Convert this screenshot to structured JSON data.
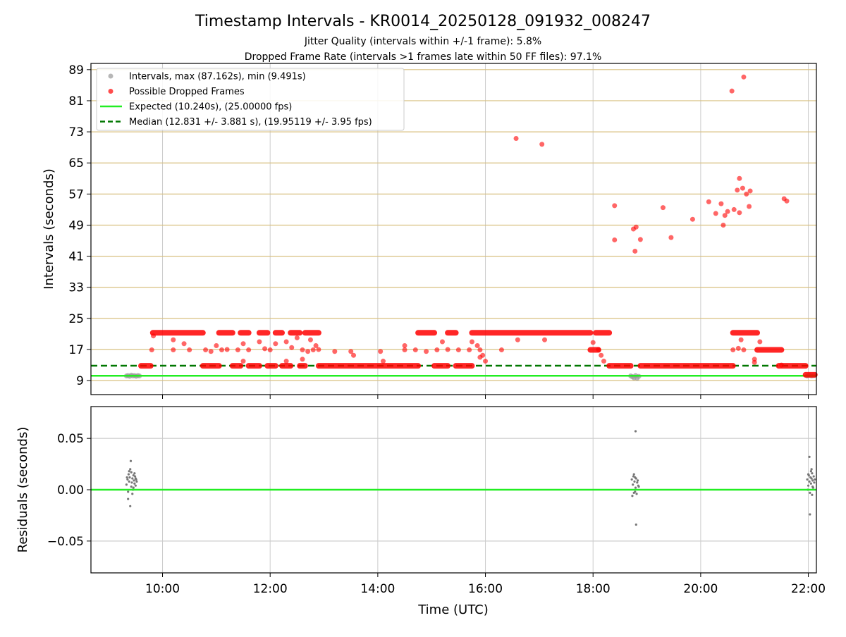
{
  "figure": {
    "title": "Timestamp Intervals - KR0014_20250128_091932_008247",
    "subtitle_1": "Jitter Quality (intervals within +/-1 frame): 5.8%",
    "subtitle_2": "Dropped Frame Rate (intervals >1 frames late within 50 FF files): 97.1%"
  },
  "colors": {
    "intervals": "#999999",
    "dropped": "#ff0000",
    "expected": "#22ee22",
    "median": "#007700",
    "yellow_grid": "#d8c080",
    "grey_grid": "#cccccc",
    "residuals": "#777777"
  },
  "chart_data": [
    {
      "type": "scatter",
      "panel": "top",
      "ylabel": "Intervals (seconds)",
      "xlim": [
        8.67,
        22.15
      ],
      "ylim": [
        5.4,
        90.6
      ],
      "x_ticks": [
        10,
        12,
        14,
        16,
        18,
        20,
        22
      ],
      "x_tick_labels": [
        "10:00",
        "12:00",
        "14:00",
        "16:00",
        "18:00",
        "20:00",
        "22:00"
      ],
      "y_ticks": [
        9,
        17,
        25,
        33,
        41,
        49,
        57,
        65,
        73,
        81,
        89
      ],
      "y_tick_labels": [
        "9",
        "17",
        "25",
        "33",
        "41",
        "49",
        "57",
        "65",
        "73",
        "81",
        "89"
      ],
      "grid": true,
      "legend_position": "top-left",
      "legend": [
        {
          "label": "Intervals, max (87.162s), min (9.491s)",
          "marker": "dot",
          "color": "#999999"
        },
        {
          "label": "Possible Dropped Frames",
          "marker": "dot",
          "color": "#ff0000"
        },
        {
          "label": "Expected (10.240s), (25.00000 fps)",
          "marker": "solid-line",
          "color": "#22ee22"
        },
        {
          "label": "Median (12.831 +/- 3.881 s), (19.95119 +/- 3.95 fps)",
          "marker": "dashed-line",
          "color": "#007700"
        }
      ],
      "lines": [
        {
          "name": "Expected",
          "y": 10.24
        },
        {
          "name": "Median",
          "y": 12.831
        }
      ],
      "series": [
        {
          "name": "Intervals",
          "points": [
            [
              9.33,
              10.2
            ],
            [
              9.36,
              10.3
            ],
            [
              9.39,
              10.1
            ],
            [
              9.42,
              10.4
            ],
            [
              9.45,
              10.2
            ],
            [
              9.48,
              10.3
            ],
            [
              9.51,
              10.1
            ],
            [
              9.54,
              10.3
            ],
            [
              9.57,
              10.2
            ],
            [
              18.7,
              10.2
            ],
            [
              18.73,
              10.0
            ],
            [
              18.76,
              9.7
            ],
            [
              18.79,
              10.3
            ],
            [
              18.82,
              9.6
            ],
            [
              18.85,
              10.1
            ],
            [
              21.98,
              10.2
            ],
            [
              22.02,
              10.4
            ],
            [
              22.06,
              10.2
            ],
            [
              22.1,
              10.3
            ]
          ]
        },
        {
          "name": "Possible Dropped Frames",
          "segments": [
            {
              "x0": 9.6,
              "x1": 9.78,
              "y": 12.8
            },
            {
              "x0": 9.82,
              "x1": 10.75,
              "y": 21.3
            },
            {
              "x0": 10.75,
              "x1": 11.05,
              "y": 12.8
            },
            {
              "x0": 11.05,
              "x1": 11.3,
              "y": 21.3
            },
            {
              "x0": 11.3,
              "x1": 11.45,
              "y": 12.8
            },
            {
              "x0": 11.45,
              "x1": 11.6,
              "y": 21.3
            },
            {
              "x0": 11.6,
              "x1": 11.8,
              "y": 12.8
            },
            {
              "x0": 11.8,
              "x1": 11.95,
              "y": 21.3
            },
            {
              "x0": 11.95,
              "x1": 12.1,
              "y": 12.8
            },
            {
              "x0": 12.1,
              "x1": 12.22,
              "y": 21.3
            },
            {
              "x0": 12.22,
              "x1": 12.38,
              "y": 12.8
            },
            {
              "x0": 12.38,
              "x1": 12.55,
              "y": 21.3
            },
            {
              "x0": 12.55,
              "x1": 12.65,
              "y": 12.8
            },
            {
              "x0": 12.65,
              "x1": 12.9,
              "y": 21.3
            },
            {
              "x0": 12.9,
              "x1": 14.75,
              "y": 12.8
            },
            {
              "x0": 14.75,
              "x1": 15.05,
              "y": 21.3
            },
            {
              "x0": 15.05,
              "x1": 15.3,
              "y": 12.8
            },
            {
              "x0": 15.3,
              "x1": 15.45,
              "y": 21.3
            },
            {
              "x0": 15.45,
              "x1": 15.75,
              "y": 12.8
            },
            {
              "x0": 15.75,
              "x1": 17.95,
              "y": 21.3
            },
            {
              "x0": 17.95,
              "x1": 18.1,
              "y": 16.9
            },
            {
              "x0": 18.05,
              "x1": 18.3,
              "y": 21.3
            },
            {
              "x0": 18.3,
              "x1": 18.7,
              "y": 12.8
            },
            {
              "x0": 18.88,
              "x1": 20.6,
              "y": 12.8
            },
            {
              "x0": 20.6,
              "x1": 21.05,
              "y": 21.3
            },
            {
              "x0": 21.05,
              "x1": 21.5,
              "y": 16.9
            },
            {
              "x0": 21.45,
              "x1": 21.95,
              "y": 12.8
            },
            {
              "x0": 21.95,
              "x1": 22.12,
              "y": 10.5
            }
          ],
          "points": [
            [
              9.8,
              16.9
            ],
            [
              9.83,
              20.5
            ],
            [
              10.2,
              19.5
            ],
            [
              10.4,
              18.5
            ],
            [
              10.2,
              16.9
            ],
            [
              10.5,
              16.9
            ],
            [
              10.8,
              16.9
            ],
            [
              11.1,
              16.9
            ],
            [
              11.0,
              18.0
            ],
            [
              10.9,
              16.5
            ],
            [
              11.2,
              17.0
            ],
            [
              11.4,
              16.9
            ],
            [
              11.5,
              18.5
            ],
            [
              11.6,
              16.9
            ],
            [
              11.8,
              19.0
            ],
            [
              11.9,
              17.2
            ],
            [
              12.0,
              16.9
            ],
            [
              12.1,
              18.5
            ],
            [
              12.3,
              19.0
            ],
            [
              12.4,
              17.5
            ],
            [
              12.5,
              20.0
            ],
            [
              12.6,
              16.9
            ],
            [
              12.7,
              16.5
            ],
            [
              12.75,
              19.5
            ],
            [
              12.8,
              16.9
            ],
            [
              12.85,
              18.0
            ],
            [
              12.9,
              17.0
            ],
            [
              12.6,
              14.5
            ],
            [
              12.3,
              14.0
            ],
            [
              11.5,
              14.0
            ],
            [
              13.2,
              16.5
            ],
            [
              13.5,
              16.5
            ],
            [
              13.55,
              15.5
            ],
            [
              14.05,
              16.5
            ],
            [
              14.1,
              14.0
            ],
            [
              14.5,
              16.9
            ],
            [
              14.5,
              18.0
            ],
            [
              14.7,
              16.9
            ],
            [
              14.9,
              16.5
            ],
            [
              15.1,
              16.9
            ],
            [
              15.2,
              19.0
            ],
            [
              15.3,
              17.0
            ],
            [
              15.5,
              16.9
            ],
            [
              15.7,
              16.9
            ],
            [
              15.75,
              19.0
            ],
            [
              15.85,
              18.0
            ],
            [
              15.9,
              16.9
            ],
            [
              15.9,
              15.0
            ],
            [
              15.95,
              15.5
            ],
            [
              16.0,
              14.0
            ],
            [
              16.3,
              16.9
            ],
            [
              16.6,
              19.5
            ],
            [
              17.1,
              19.5
            ],
            [
              18.0,
              18.8
            ],
            [
              18.1,
              17.0
            ],
            [
              18.15,
              15.5
            ],
            [
              18.2,
              14.0
            ],
            [
              20.6,
              16.9
            ],
            [
              20.7,
              17.3
            ],
            [
              20.75,
              19.5
            ],
            [
              20.8,
              16.9
            ],
            [
              21.0,
              14.5
            ],
            [
              21.0,
              13.7
            ],
            [
              21.1,
              19.0
            ],
            [
              21.5,
              13.0
            ],
            [
              16.57,
              71.3
            ],
            [
              17.05,
              69.8
            ],
            [
              18.4,
              54.0
            ],
            [
              18.4,
              45.2
            ],
            [
              18.75,
              48.0
            ],
            [
              18.8,
              48.5
            ],
            [
              18.88,
              45.3
            ],
            [
              18.78,
              42.3
            ],
            [
              19.3,
              53.5
            ],
            [
              19.45,
              45.8
            ],
            [
              19.85,
              50.5
            ],
            [
              20.15,
              55.0
            ],
            [
              20.28,
              52.0
            ],
            [
              20.38,
              54.5
            ],
            [
              20.45,
              51.5
            ],
            [
              20.42,
              49.0
            ],
            [
              20.5,
              52.5
            ],
            [
              20.58,
              83.5
            ],
            [
              20.62,
              53.0
            ],
            [
              20.68,
              58.0
            ],
            [
              20.72,
              52.2
            ],
            [
              20.72,
              61.0
            ],
            [
              20.78,
              58.5
            ],
            [
              20.8,
              87.1
            ],
            [
              20.85,
              57.0
            ],
            [
              20.9,
              53.8
            ],
            [
              20.92,
              57.8
            ],
            [
              21.55,
              55.8
            ],
            [
              21.6,
              55.2
            ]
          ]
        }
      ]
    },
    {
      "type": "scatter",
      "panel": "bottom",
      "xlabel": "Time (UTC)",
      "ylabel": "Residuals (seconds)",
      "xlim": [
        8.67,
        22.15
      ],
      "ylim": [
        -0.081,
        0.081
      ],
      "x_ticks": [
        10,
        12,
        14,
        16,
        18,
        20,
        22
      ],
      "x_tick_labels": [
        "10:00",
        "12:00",
        "14:00",
        "16:00",
        "18:00",
        "20:00",
        "22:00"
      ],
      "y_ticks": [
        0.05,
        0.0,
        -0.05
      ],
      "y_tick_labels": [
        "0.05",
        "0.00",
        "−0.05"
      ],
      "grid": true,
      "lines": [
        {
          "name": "Expected",
          "y": 0.0
        }
      ],
      "series": [
        {
          "name": "Residuals",
          "points": [
            [
              9.33,
              0.005
            ],
            [
              9.35,
              0.01
            ],
            [
              9.36,
              -0.002
            ],
            [
              9.37,
              0.015
            ],
            [
              9.38,
              0.008
            ],
            [
              9.39,
              0.012
            ],
            [
              9.4,
              0.02
            ],
            [
              9.41,
              0.028
            ],
            [
              9.42,
              0.003
            ],
            [
              9.43,
              0.007
            ],
            [
              9.44,
              0.011
            ],
            [
              9.45,
              0.0
            ],
            [
              9.46,
              0.014
            ],
            [
              9.47,
              0.009
            ],
            [
              9.48,
              0.006
            ],
            [
              9.49,
              0.013
            ],
            [
              9.5,
              0.004
            ],
            [
              9.51,
              0.01
            ],
            [
              9.52,
              0.008
            ],
            [
              9.36,
              -0.009
            ],
            [
              9.4,
              -0.016
            ],
            [
              9.44,
              -0.004
            ],
            [
              9.38,
              0.018
            ],
            [
              9.46,
              0.002
            ],
            [
              9.34,
              0.012
            ],
            [
              9.48,
              0.016
            ],
            [
              9.5,
              0.011
            ],
            [
              9.42,
              0.017
            ],
            [
              18.72,
              0.01
            ],
            [
              18.74,
              0.005
            ],
            [
              18.75,
              0.013
            ],
            [
              18.76,
              -0.003
            ],
            [
              18.77,
              0.008
            ],
            [
              18.78,
              0.012
            ],
            [
              18.79,
              0.002
            ],
            [
              18.8,
              0.011
            ],
            [
              18.81,
              -0.004
            ],
            [
              18.82,
              0.007
            ],
            [
              18.83,
              0.009
            ],
            [
              18.84,
              0.004
            ],
            [
              18.73,
              -0.006
            ],
            [
              18.79,
              0.057
            ],
            [
              18.8,
              -0.034
            ],
            [
              18.76,
              0.015
            ],
            [
              18.78,
              -0.002
            ],
            [
              18.85,
              0.003
            ],
            [
              21.98,
              0.01
            ],
            [
              22.0,
              0.004
            ],
            [
              22.01,
              0.014
            ],
            [
              22.02,
              0.008
            ],
            [
              22.03,
              -0.003
            ],
            [
              22.04,
              0.012
            ],
            [
              22.05,
              0.006
            ],
            [
              22.06,
              0.011
            ],
            [
              22.07,
              0.016
            ],
            [
              22.08,
              0.009
            ],
            [
              22.09,
              0.002
            ],
            [
              22.1,
              0.013
            ],
            [
              22.11,
              0.007
            ],
            [
              22.02,
              0.032
            ],
            [
              22.03,
              -0.024
            ],
            [
              22.05,
              0.018
            ],
            [
              22.07,
              -0.005
            ],
            [
              22.12,
              0.01
            ],
            [
              21.99,
              0.0
            ],
            [
              22.0,
              0.015
            ],
            [
              22.06,
              0.02
            ],
            [
              22.08,
              0.003
            ]
          ]
        }
      ]
    }
  ]
}
